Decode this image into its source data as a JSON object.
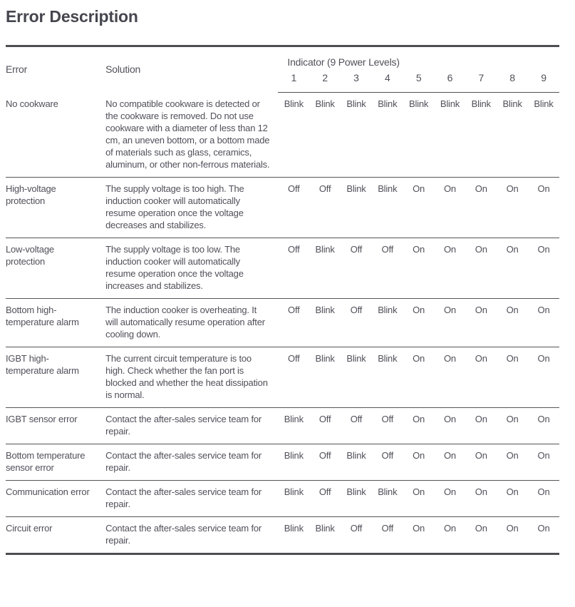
{
  "page": {
    "title": "Error Description"
  },
  "colors": {
    "text": "#50505a",
    "title": "#46464e",
    "rule_thick": "#4d4d52",
    "rule_thin": "#55555a",
    "background": "#ffffff"
  },
  "table": {
    "col_error": "Error",
    "col_solution": "Solution",
    "indicator_header": "Indicator (9 Power Levels)",
    "levels": [
      "1",
      "2",
      "3",
      "4",
      "5",
      "6",
      "7",
      "8",
      "9"
    ],
    "rows": [
      {
        "error": "No cookware",
        "solution": "No compatible cookware is detected or the cookware is removed. Do not use cookware with a diameter of less than 12 cm, an uneven bottom, or a bottom made of materials such as glass, ceramics, aluminum, or other non-ferrous materials.",
        "indicators": [
          "Blink",
          "Blink",
          "Blink",
          "Blink",
          "Blink",
          "Blink",
          "Blink",
          "Blink",
          "Blink"
        ]
      },
      {
        "error": "High-voltage protection",
        "solution": "The supply voltage is too high. The induction cooker will automatically resume operation once the voltage decreases and stabilizes.",
        "indicators": [
          "Off",
          "Off",
          "Blink",
          "Blink",
          "On",
          "On",
          "On",
          "On",
          "On"
        ]
      },
      {
        "error": "Low-voltage protection",
        "solution": "The supply voltage is too low. The induction cooker will automatically resume operation once the voltage increases and stabilizes.",
        "indicators": [
          "Off",
          "Blink",
          "Off",
          "Off",
          "On",
          "On",
          "On",
          "On",
          "On"
        ]
      },
      {
        "error": "Bottom high-temperature alarm",
        "solution": "The induction cooker is overheating. It will automatically resume operation after cooling down.",
        "indicators": [
          "Off",
          "Blink",
          "Off",
          "Blink",
          "On",
          "On",
          "On",
          "On",
          "On"
        ]
      },
      {
        "error": "IGBT high-temperature alarm",
        "solution": "The current circuit temperature is too high. Check whether the fan port is blocked and whether the heat dissipation is normal.",
        "indicators": [
          "Off",
          "Blink",
          "Blink",
          "Blink",
          "On",
          "On",
          "On",
          "On",
          "On"
        ]
      },
      {
        "error": "IGBT sensor error",
        "solution": "Contact the after-sales service team for repair.",
        "indicators": [
          "Blink",
          "Off",
          "Off",
          "Off",
          "On",
          "On",
          "On",
          "On",
          "On"
        ]
      },
      {
        "error": "Bottom temperature sensor error",
        "solution": "Contact the after-sales service team for repair.",
        "indicators": [
          "Blink",
          "Off",
          "Blink",
          "Off",
          "On",
          "On",
          "On",
          "On",
          "On"
        ]
      },
      {
        "error": "Communication error",
        "solution": "Contact the after-sales service team for repair.",
        "indicators": [
          "Blink",
          "Off",
          "Blink",
          "Blink",
          "On",
          "On",
          "On",
          "On",
          "On"
        ]
      },
      {
        "error": "Circuit error",
        "solution": "Contact the after-sales service team for repair.",
        "indicators": [
          "Blink",
          "Blink",
          "Off",
          "Off",
          "On",
          "On",
          "On",
          "On",
          "On"
        ]
      }
    ]
  }
}
